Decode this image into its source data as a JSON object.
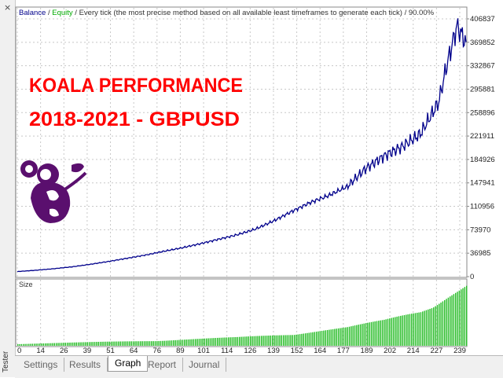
{
  "legend": {
    "balance": "Balance",
    "sep1": " / ",
    "equity": "Equity",
    "sep2": " / ",
    "info": "Every tick (the most precise method based on all available least timeframes to generate each tick) / 90.00%"
  },
  "overlay": {
    "line1": "KOALA PERFORMANCE",
    "line2": "2018-2021 - GBPUSD"
  },
  "volume_panel": {
    "label": "Size"
  },
  "side_panel": {
    "close_glyph": "×",
    "label": "Tester"
  },
  "tabs": [
    "Settings",
    "Results",
    "Graph",
    "Report",
    "Journal"
  ],
  "active_tab": "Graph",
  "colors": {
    "balance": "#00008b",
    "equity": "#00aa00",
    "volume": "#22bb22",
    "overlay_text": "#ff0000",
    "logo": "#5a0f6e"
  },
  "chart_data": {
    "type": "line",
    "series": [
      {
        "name": "Balance",
        "x": [
          0,
          10,
          20,
          30,
          40,
          50,
          60,
          70,
          80,
          90,
          100,
          110,
          120,
          130,
          140,
          150,
          160,
          170,
          180,
          190,
          200,
          210,
          220,
          230,
          235,
          240,
          242,
          245
        ],
        "values": [
          8000,
          10000,
          12500,
          15500,
          19500,
          24000,
          29000,
          34000,
          40000,
          45500,
          52000,
          59000,
          66000,
          75000,
          88000,
          103000,
          117000,
          128000,
          142000,
          170000,
          190000,
          205000,
          225000,
          275000,
          340000,
          395000,
          385000,
          370000
        ]
      }
    ],
    "x_ticks": [
      "0",
      "14",
      "26",
      "39",
      "51",
      "64",
      "76",
      "89",
      "101",
      "114",
      "126",
      "139",
      "152",
      "164",
      "177",
      "189",
      "202",
      "214",
      "227",
      "239"
    ],
    "y_ticks": [
      "406837",
      "369852",
      "332867",
      "295881",
      "258896",
      "221911",
      "184926",
      "147941",
      "110956",
      "73970",
      "36985",
      "0"
    ],
    "ylim": [
      0,
      406837
    ],
    "xlim": [
      0,
      245
    ],
    "volume": {
      "label": "Size",
      "x": [
        0,
        40,
        80,
        120,
        150,
        180,
        200,
        220,
        235,
        245
      ],
      "values": [
        3,
        6,
        9,
        14,
        20,
        30,
        42,
        60,
        85,
        100
      ]
    }
  }
}
